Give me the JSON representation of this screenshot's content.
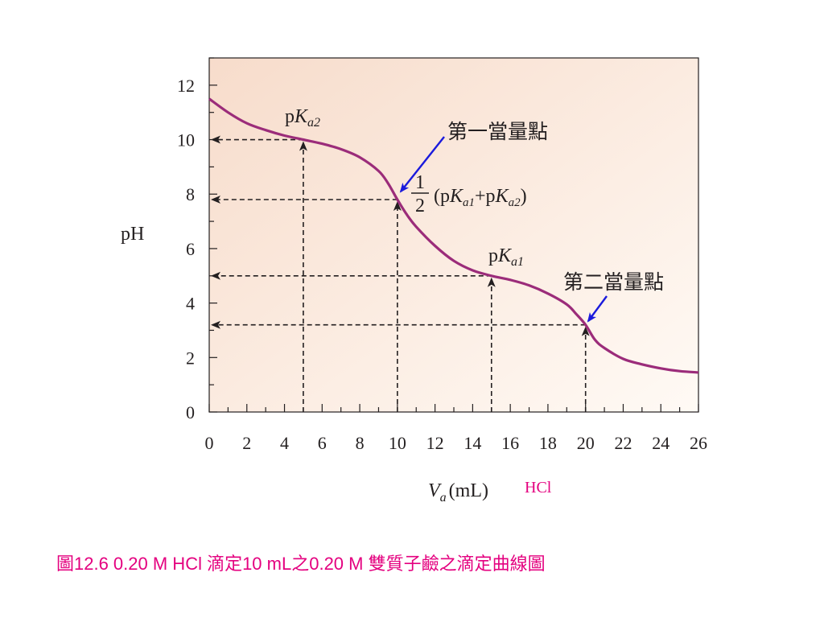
{
  "chart_data": {
    "type": "line",
    "xlim": [
      0,
      26
    ],
    "ylim": [
      0,
      13
    ],
    "x_ticks": [
      0,
      2,
      4,
      6,
      8,
      10,
      12,
      14,
      16,
      18,
      20,
      22,
      24,
      26
    ],
    "y_ticks": [
      0,
      2,
      4,
      6,
      8,
      10,
      12
    ],
    "ylabel": "pH",
    "xlabel_main": "V",
    "xlabel_sub": "a",
    "xlabel_unit": "(mL)",
    "xlabel_extra": "HCl",
    "curve_color": "#9b2c7a",
    "series": [
      {
        "x": [
          0,
          1,
          2,
          3,
          4,
          5,
          6,
          7,
          8,
          9,
          9.5,
          10,
          10.5,
          11,
          12,
          13,
          14,
          15,
          16,
          17,
          18,
          19,
          19.5,
          20,
          20.5,
          21,
          22,
          23,
          24,
          25,
          26
        ],
        "y": [
          11.5,
          11.0,
          10.6,
          10.35,
          10.15,
          10.0,
          9.85,
          9.65,
          9.35,
          8.85,
          8.4,
          7.8,
          7.25,
          6.8,
          6.1,
          5.55,
          5.2,
          5.0,
          4.85,
          4.65,
          4.35,
          3.95,
          3.6,
          3.2,
          2.65,
          2.35,
          1.95,
          1.75,
          1.6,
          1.5,
          1.45
        ]
      }
    ],
    "reference_points": [
      {
        "x": 5,
        "y": 10
      },
      {
        "x": 10,
        "y": 7.8
      },
      {
        "x": 15,
        "y": 5.0
      },
      {
        "x": 20,
        "y": 3.2
      }
    ],
    "annotations": {
      "pka2": {
        "p": "p",
        "K": "K",
        "sub": "a2"
      },
      "pka1": {
        "p": "p",
        "K": "K",
        "sub": "a1"
      },
      "half_num": "1",
      "half_den": "2",
      "half_open": "(p",
      "half_k1": "K",
      "half_sub1": "a1",
      "half_plus": "+p",
      "half_k2": "K",
      "half_sub2": "a2",
      "half_close": ")",
      "eq1": "第一當量點",
      "eq2": "第二當量點"
    }
  },
  "caption": "圖12.6  0.20 M HCl 滴定10 mL之0.20 M 雙質子鹼之滴定曲線圖"
}
